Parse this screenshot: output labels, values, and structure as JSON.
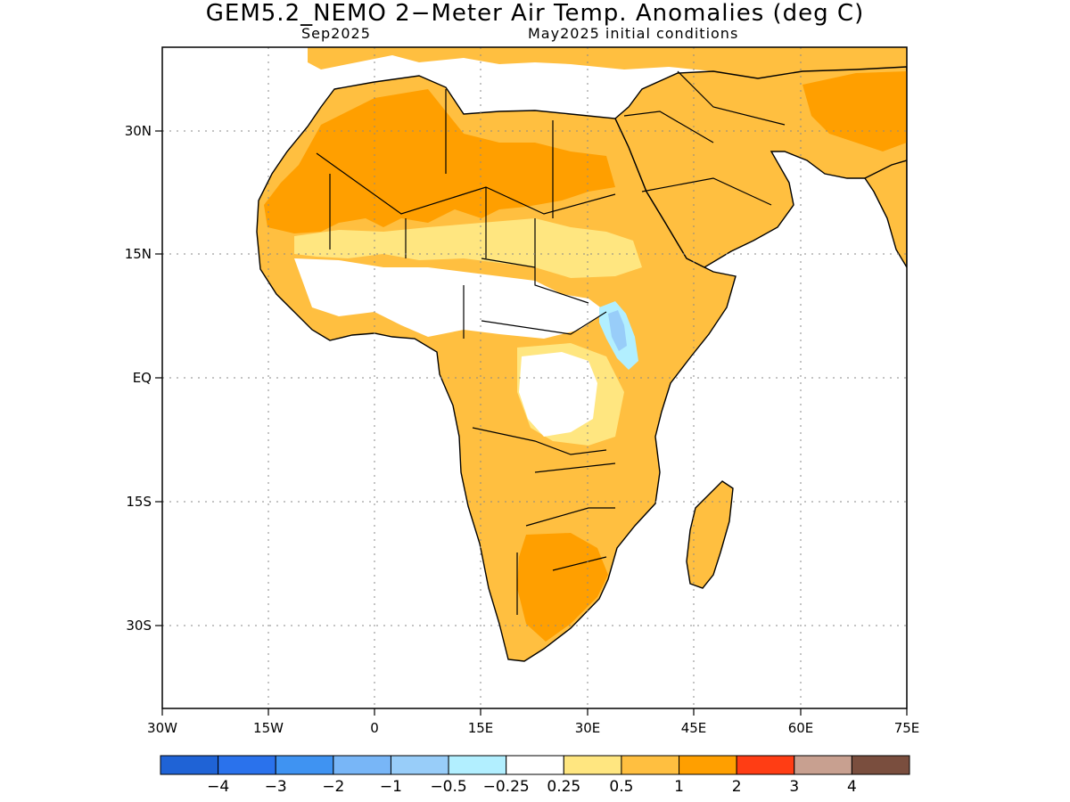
{
  "title": "GEM5.2_NEMO 2−Meter Air Temp. Anomalies (deg C)",
  "subtitle_left": "Sep2025",
  "subtitle_right": "May2025 initial conditions",
  "lon_ticks": [
    "30W",
    "15W",
    "0",
    "15E",
    "30E",
    "45E",
    "60E",
    "75E"
  ],
  "lat_ticks": [
    "30N",
    "15N",
    "EQ",
    "15S",
    "30S"
  ],
  "colorbar": {
    "colors": [
      "#1f63d6",
      "#2a72ec",
      "#3f93f2",
      "#78b6f7",
      "#98cdf9",
      "#b2efff",
      "#ffffff",
      "#ffe680",
      "#ffbf40",
      "#ff9f00",
      "#ff3d14",
      "#c8a090",
      "#7a4e3e"
    ],
    "labels": [
      "−4",
      "−3",
      "−2",
      "−1",
      "−0.5",
      "−0.25",
      "0.25",
      "0.5",
      "1",
      "2",
      "3",
      "4"
    ]
  },
  "legend_colors": {
    "anom_0_25_0_5": "#ffe680",
    "anom_0_5_1": "#ffbf40",
    "anom_1_2": "#ff9f00",
    "anom_neg_0_5_0_25": "#b2efff",
    "anom_neg_1_0_5": "#98cdf9"
  }
}
